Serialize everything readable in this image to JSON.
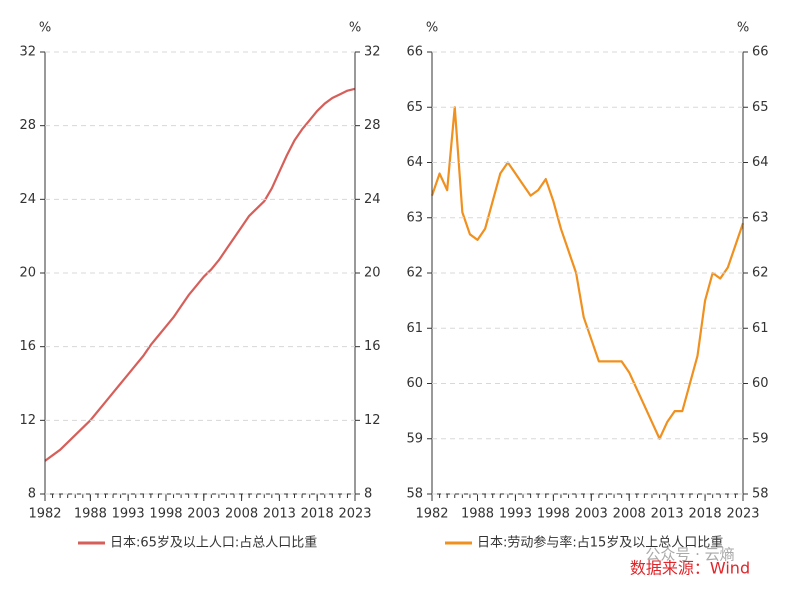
{
  "chart_data": [
    {
      "type": "line",
      "y_unit": "%",
      "x": [
        1982,
        1983,
        1984,
        1985,
        1986,
        1987,
        1988,
        1989,
        1990,
        1991,
        1992,
        1993,
        1994,
        1995,
        1996,
        1997,
        1998,
        1999,
        2000,
        2001,
        2002,
        2003,
        2004,
        2005,
        2006,
        2007,
        2008,
        2009,
        2010,
        2011,
        2012,
        2013,
        2014,
        2015,
        2016,
        2017,
        2018,
        2019,
        2020,
        2021,
        2022,
        2023
      ],
      "series": [
        {
          "name": "日本:65岁及以上人口:占总人口比重",
          "color": "#d65f5a",
          "values": [
            9.8,
            10.1,
            10.4,
            10.8,
            11.2,
            11.6,
            12.0,
            12.5,
            13.0,
            13.5,
            14.0,
            14.5,
            15.0,
            15.5,
            16.1,
            16.6,
            17.1,
            17.6,
            18.2,
            18.8,
            19.3,
            19.8,
            20.2,
            20.7,
            21.3,
            21.9,
            22.5,
            23.1,
            23.5,
            23.9,
            24.6,
            25.5,
            26.4,
            27.2,
            27.8,
            28.3,
            28.8,
            29.2,
            29.5,
            29.7,
            29.9,
            30.0
          ]
        }
      ],
      "xlim": [
        1982,
        2023
      ],
      "xticks": [
        1982,
        1988,
        1993,
        1998,
        2003,
        2008,
        2013,
        2018,
        2023
      ],
      "ylim": [
        8,
        32
      ],
      "yticks": [
        8,
        12,
        16,
        20,
        24,
        28,
        32
      ],
      "grid": true
    },
    {
      "type": "line",
      "y_unit": "%",
      "x": [
        1982,
        1983,
        1984,
        1985,
        1986,
        1987,
        1988,
        1989,
        1990,
        1991,
        1992,
        1993,
        1994,
        1995,
        1996,
        1997,
        1998,
        1999,
        2000,
        2001,
        2002,
        2003,
        2004,
        2005,
        2006,
        2007,
        2008,
        2009,
        2010,
        2011,
        2012,
        2013,
        2014,
        2015,
        2016,
        2017,
        2018,
        2019,
        2020,
        2021,
        2022,
        2023
      ],
      "series": [
        {
          "name": "日本:劳动参与率:占15岁及以上总人口比重",
          "color": "#f0901f",
          "values": [
            63.4,
            63.8,
            63.5,
            65.0,
            63.1,
            62.7,
            62.6,
            62.8,
            63.3,
            63.8,
            64.0,
            63.8,
            63.6,
            63.4,
            63.5,
            63.7,
            63.3,
            62.8,
            62.4,
            62.0,
            61.2,
            60.8,
            60.4,
            60.4,
            60.4,
            60.4,
            60.2,
            59.9,
            59.6,
            59.3,
            59.0,
            59.3,
            59.5,
            59.5,
            60.0,
            60.5,
            61.5,
            62.0,
            61.9,
            62.1,
            62.5,
            62.9
          ]
        }
      ],
      "xlim": [
        1982,
        2023
      ],
      "xticks": [
        1982,
        1988,
        1993,
        1998,
        2003,
        2008,
        2013,
        2018,
        2023
      ],
      "ylim": [
        58,
        66
      ],
      "yticks": [
        58,
        59,
        60,
        61,
        62,
        63,
        64,
        65,
        66
      ],
      "grid": true
    }
  ],
  "watermark": "公众号 · 云熵",
  "source": "数据来源：Wind"
}
